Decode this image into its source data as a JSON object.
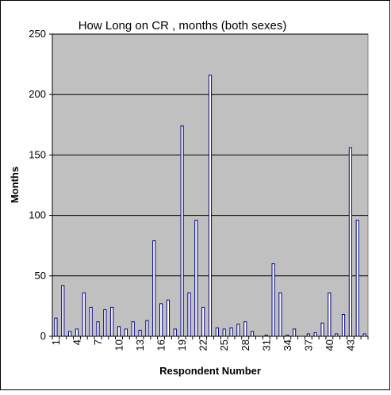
{
  "chart_data": {
    "type": "bar",
    "title": "How Long on CR , months (both sexes)",
    "xlabel": "Respondent Number",
    "ylabel": "Months",
    "ylim": [
      0,
      250
    ],
    "yticks": [
      "0",
      "50",
      "100",
      "150",
      "200",
      "250"
    ],
    "x": [
      1,
      2,
      3,
      4,
      5,
      6,
      7,
      8,
      9,
      10,
      11,
      12,
      13,
      14,
      15,
      16,
      17,
      18,
      19,
      20,
      21,
      22,
      23,
      24,
      25,
      26,
      27,
      28,
      29,
      30,
      31,
      32,
      33,
      34,
      35,
      36,
      37,
      38,
      39,
      40,
      41,
      42,
      43,
      44,
      45
    ],
    "xtick_labels": [
      "1",
      "4",
      "7",
      "10",
      "13",
      "16",
      "19",
      "22",
      "25",
      "28",
      "31",
      "34",
      "37",
      "40",
      "43"
    ],
    "values": [
      15,
      42,
      4,
      6,
      36,
      24,
      12,
      22,
      24,
      8,
      6,
      12,
      5,
      13,
      79,
      27,
      30,
      6,
      174,
      36,
      96,
      24,
      216,
      7,
      6,
      7,
      10,
      12,
      4,
      0,
      1,
      60,
      36,
      1,
      6,
      0,
      2,
      3,
      11,
      36,
      2,
      18,
      156,
      96,
      2
    ],
    "grid": "horizontal",
    "colors": {
      "plot_background": "#c0c0c0",
      "bar_fill": "#ffffff",
      "bar_stroke": "#000080",
      "gridline": "#000000"
    }
  }
}
